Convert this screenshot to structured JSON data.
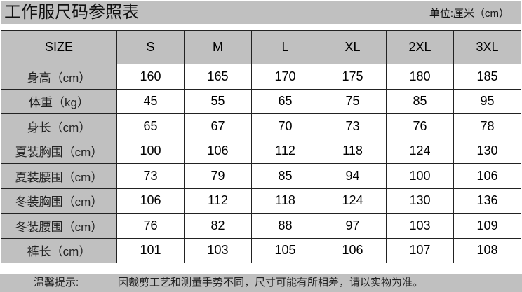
{
  "title": "工作服尺码参照表",
  "unit": "单位:厘米（cm）",
  "table": {
    "headers": [
      "SIZE",
      "S",
      "M",
      "L",
      "XL",
      "2XL",
      "3XL"
    ],
    "rows": [
      {
        "label": "身高（cm）",
        "values": [
          "160",
          "165",
          "170",
          "175",
          "180",
          "185"
        ]
      },
      {
        "label": "体重（kg）",
        "values": [
          "45",
          "55",
          "65",
          "75",
          "85",
          "95"
        ]
      },
      {
        "label": "身长（cm）",
        "values": [
          "65",
          "67",
          "70",
          "73",
          "76",
          "78"
        ]
      },
      {
        "label": "夏装胸围（cm）",
        "values": [
          "100",
          "106",
          "112",
          "118",
          "124",
          "130"
        ]
      },
      {
        "label": "夏装腰围（cm）",
        "values": [
          "73",
          "79",
          "85",
          "94",
          "100",
          "106"
        ]
      },
      {
        "label": "冬装胸围（cm）",
        "values": [
          "106",
          "112",
          "118",
          "124",
          "130",
          "136"
        ]
      },
      {
        "label": "冬装腰围（cm）",
        "values": [
          "76",
          "82",
          "88",
          "97",
          "103",
          "109"
        ]
      },
      {
        "label": "裤长（cm）",
        "values": [
          "101",
          "103",
          "105",
          "106",
          "107",
          "108"
        ]
      }
    ]
  },
  "footer": {
    "label": "温馨提示:",
    "note": "因裁剪工艺和测量手势不同，尺寸可能有所相差，请以实物为准。"
  },
  "colors": {
    "header_bg": "#c0c0c0",
    "border": "#222222"
  }
}
